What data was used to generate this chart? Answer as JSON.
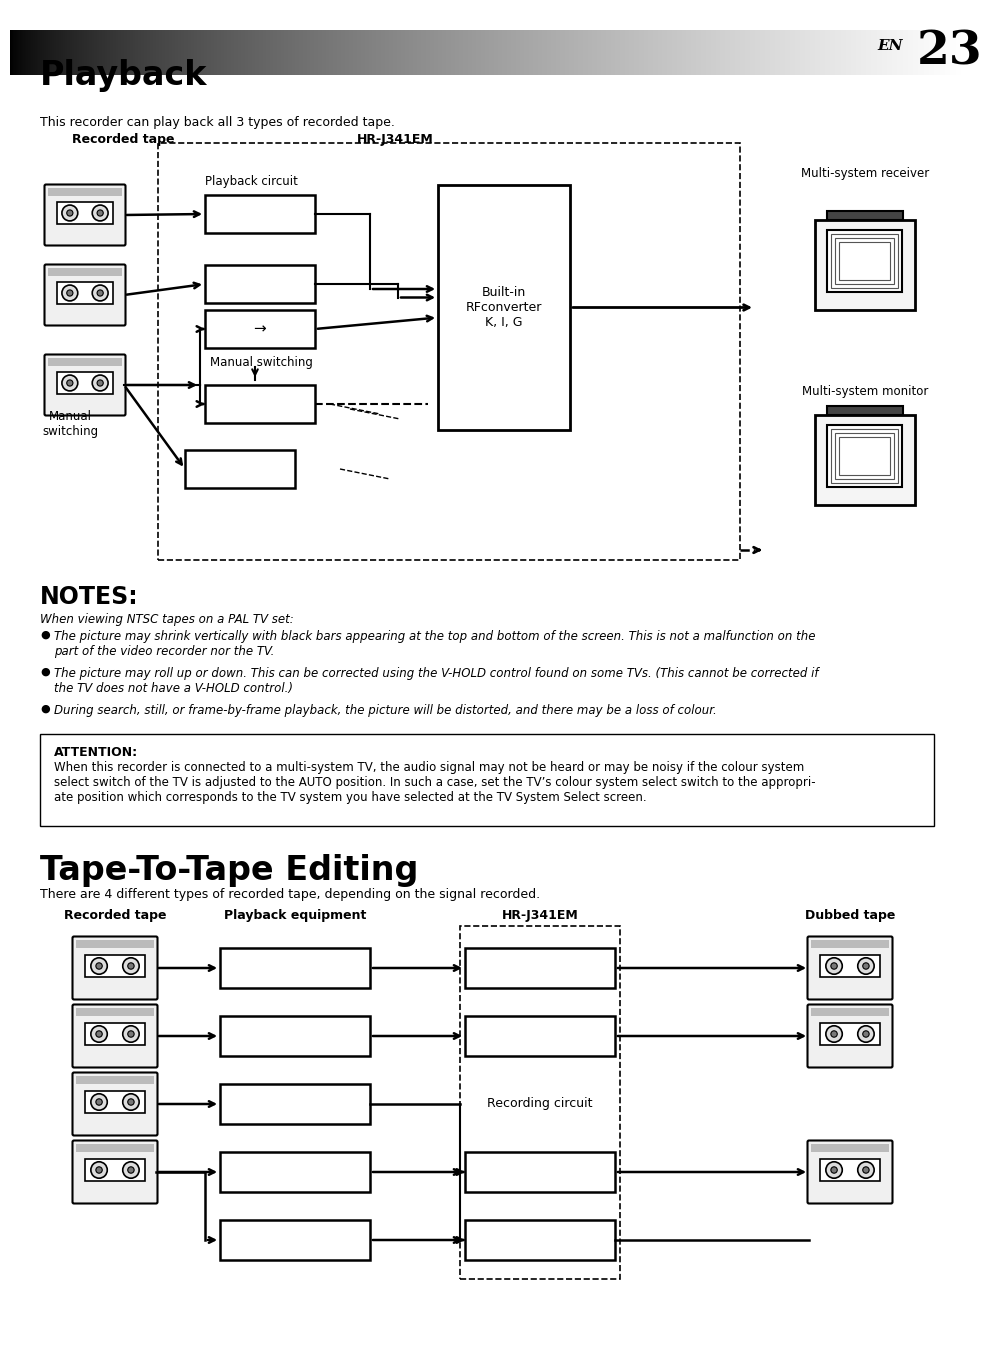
{
  "page_bg": "#ffffff",
  "page_num": "23",
  "page_en": "EN",
  "section1_title": "Playback",
  "section1_subtitle": "This recorder can play back all 3 types of recorded tape.",
  "section1_label_left": "Recorded tape",
  "section1_label_center": "HR-J341EM",
  "section1_label_right1": "Multi-system receiver",
  "section1_label_right2": "Multi-system monitor",
  "playback_circuit_label": "Playback circuit",
  "rfconverter_label": "Built-in\nRFconverter\nK, I, G",
  "manual_switching_label1": "Manual switching",
  "manual_switching_label2": "Manual\nswitching",
  "notes_title": "NOTES:",
  "notes_intro": "When viewing NTSC tapes on a PAL TV set:",
  "notes_bullets": [
    "The picture may shrink vertically with black bars appearing at the top and bottom of the screen. This is not a malfunction on the\npart of the video recorder nor the TV.",
    "The picture may roll up or down. This can be corrected using the V-HOLD control found on some TVs. (This cannot be corrected if\nthe TV does not have a V-HOLD control.)",
    "During search, still, or frame-by-frame playback, the picture will be distorted, and there may be a loss of colour."
  ],
  "attention_title": "ATTENTION:",
  "attention_text": "When this recorder is connected to a multi-system TV, the audio signal may not be heard or may be noisy if the colour system\nselect switch of the TV is adjusted to the AUTO position. In such a case, set the TV’s colour system select switch to the appropri-\nate position which corresponds to the TV system you have selected at the TV System Select screen.",
  "section2_title": "Tape-To-Tape Editing",
  "section2_subtitle": "There are 4 different types of recorded tape, depending on the signal recorded.",
  "section2_label_left": "Recorded tape",
  "section2_label_center1": "Playback equipment",
  "section2_label_center2": "HR-J341EM",
  "section2_label_right": "Dubbed tape",
  "recording_circuit_label": "Recording circuit"
}
